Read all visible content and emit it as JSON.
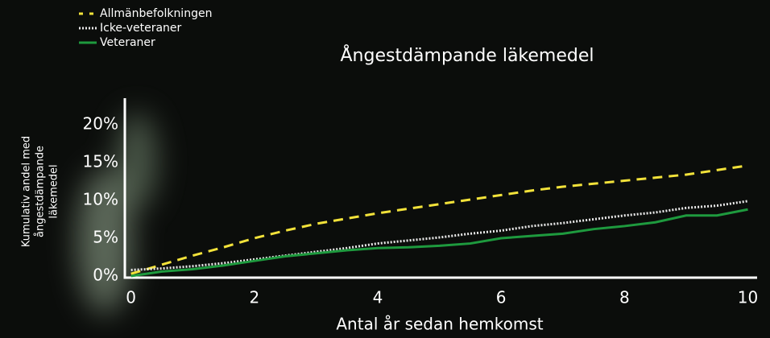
{
  "chart_data": {
    "type": "line",
    "title": "Ångestdämpande läkemedel",
    "x_label": "Antal år sedan hemkomst",
    "y_label": [
      "Kumulativ andel med",
      "ångestdämpande",
      "läkemedel"
    ],
    "x": [
      0,
      0.5,
      1,
      1.5,
      2,
      2.5,
      3,
      3.5,
      4,
      4.5,
      5,
      5.5,
      6,
      6.5,
      7,
      7.5,
      8,
      8.5,
      9,
      9.5,
      10
    ],
    "series": [
      {
        "name": "Allmänbefolkningen",
        "color": "#f2e23a",
        "dash": "dashed",
        "values": [
          0.3,
          1.5,
          2.7,
          3.8,
          5.0,
          6.0,
          6.9,
          7.6,
          8.3,
          8.9,
          9.5,
          10.1,
          10.7,
          11.3,
          11.8,
          12.2,
          12.6,
          13.0,
          13.4,
          14.0,
          14.6
        ]
      },
      {
        "name": "Icke-veteraner",
        "color": "#e8e8e8",
        "dash": "dotted",
        "values": [
          0.8,
          1.0,
          1.3,
          1.7,
          2.2,
          2.7,
          3.2,
          3.7,
          4.3,
          4.7,
          5.1,
          5.6,
          6.0,
          6.6,
          7.0,
          7.5,
          8.0,
          8.4,
          9.0,
          9.3,
          9.9
        ]
      },
      {
        "name": "Veteraner",
        "color": "#1e9a3e",
        "dash": "solid",
        "values": [
          0.0,
          0.6,
          0.9,
          1.4,
          2.0,
          2.6,
          3.0,
          3.4,
          3.7,
          3.8,
          4.0,
          4.3,
          5.0,
          5.3,
          5.6,
          6.2,
          6.6,
          7.1,
          8.0,
          8.0,
          8.8
        ]
      }
    ],
    "xlim": [
      -0.1,
      10.15
    ],
    "ylim": [
      0,
      23.5
    ],
    "xticks": [
      0,
      2,
      4,
      6,
      8,
      10
    ],
    "yticks": [
      {
        "value": 0,
        "label": "0%"
      },
      {
        "value": 5,
        "label": "5%"
      },
      {
        "value": 10,
        "label": "10%"
      },
      {
        "value": 15,
        "label": "15%"
      },
      {
        "value": 20,
        "label": "20%"
      }
    ],
    "grid": false,
    "legend": "top-left"
  }
}
